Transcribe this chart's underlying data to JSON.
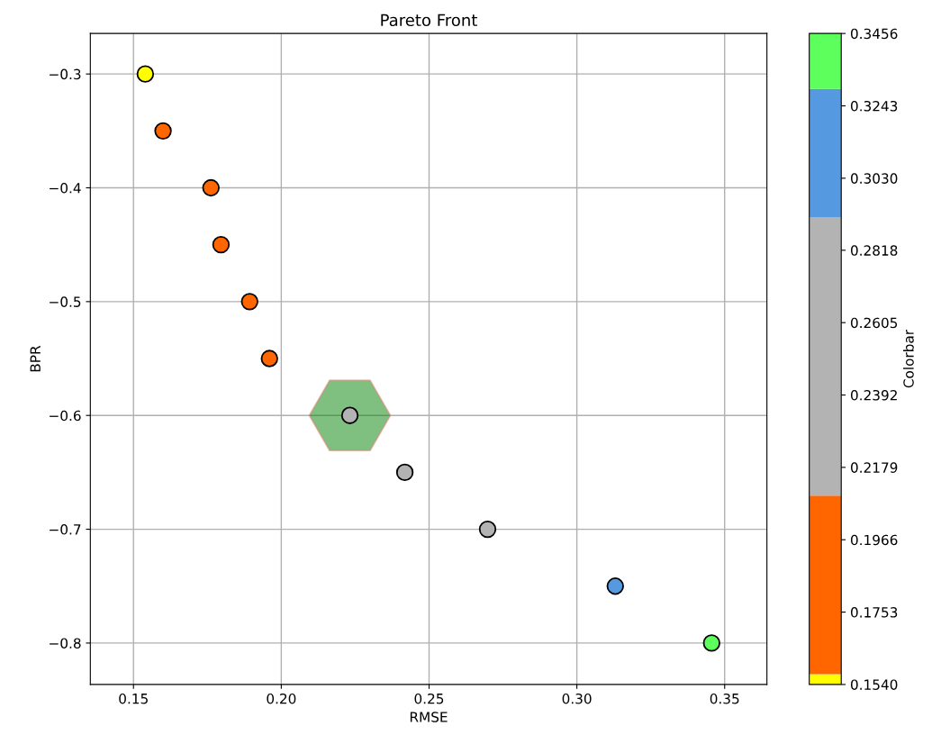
{
  "chart_data": {
    "type": "scatter",
    "title": "Pareto Front",
    "xlabel": "RMSE",
    "ylabel": "BPR",
    "clabel": "Colorbar",
    "x": [
      0.154,
      0.16,
      0.1762,
      0.1796,
      0.1893,
      0.196,
      0.2232,
      0.2418,
      0.2698,
      0.313,
      0.3456
    ],
    "series": [
      {
        "type": "scatter",
        "marker": "circle",
        "values": [
          -0.3,
          -0.35,
          -0.4,
          -0.45,
          -0.5,
          -0.55,
          -0.6,
          -0.65,
          -0.7,
          -0.75,
          -0.8
        ],
        "colors": [
          "#ffff00",
          "#ff6600",
          "#ff6600",
          "#ff6600",
          "#ff6600",
          "#ff6600",
          "#b3b3b3",
          "#b3b3b3",
          "#b3b3b3",
          "#5599e0",
          "#5cff5c"
        ]
      }
    ],
    "xlim": [
      0.1354,
      0.3643
    ],
    "ylim": [
      -0.8364,
      -0.2644
    ],
    "xticks": [
      {
        "value": 0.15,
        "label": "0.15"
      },
      {
        "value": 0.2,
        "label": "0.20"
      },
      {
        "value": 0.25,
        "label": "0.25"
      },
      {
        "value": 0.3,
        "label": "0.30"
      },
      {
        "value": 0.35,
        "label": "0.35"
      }
    ],
    "yticks": [
      {
        "value": -0.3,
        "label": "−0.3"
      },
      {
        "value": -0.4,
        "label": "−0.4"
      },
      {
        "value": -0.5,
        "label": "−0.5"
      },
      {
        "value": -0.6,
        "label": "−0.6"
      },
      {
        "value": -0.7,
        "label": "−0.7"
      },
      {
        "value": -0.8,
        "label": "−0.8"
      }
    ],
    "clim": [
      0.154,
      0.3456
    ],
    "cticks": [
      {
        "value": 0.154,
        "label": "0.1540"
      },
      {
        "value": 0.1753,
        "label": "0.1753"
      },
      {
        "value": 0.1966,
        "label": "0.1966"
      },
      {
        "value": 0.2179,
        "label": "0.2179"
      },
      {
        "value": 0.2392,
        "label": "0.2392"
      },
      {
        "value": 0.2605,
        "label": "0.2605"
      },
      {
        "value": 0.2818,
        "label": "0.2818"
      },
      {
        "value": 0.303,
        "label": "0.3030"
      },
      {
        "value": 0.3243,
        "label": "0.3243"
      },
      {
        "value": 0.3456,
        "label": "0.3456"
      }
    ],
    "grid": true
  }
}
